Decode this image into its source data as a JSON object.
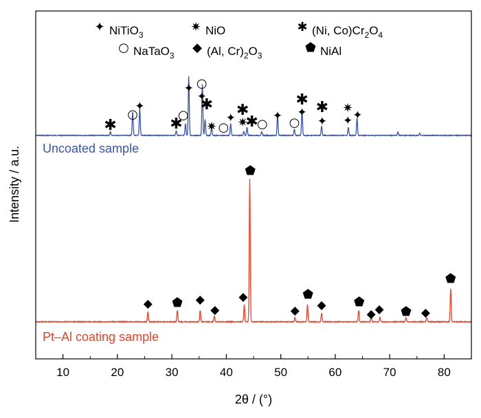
{
  "chart_data": {
    "type": "line",
    "xlabel": "2θ / (°)",
    "ylabel": "Intensity / a.u.",
    "xlim": [
      5,
      85
    ],
    "x_ticks": [
      "10",
      "20",
      "30",
      "40",
      "50",
      "60",
      "70",
      "80"
    ],
    "grid": false,
    "legend_position": "top",
    "legend": [
      {
        "symbol": "✦",
        "symbol_name": "four-point-star",
        "parts": [
          [
            "NiTiO",
            ""
          ],
          [
            "3",
            "sub"
          ]
        ]
      },
      {
        "symbol": "✷",
        "symbol_name": "eight-point-star",
        "parts": [
          [
            "NiO",
            ""
          ]
        ]
      },
      {
        "symbol": "✱",
        "symbol_name": "asterisk",
        "parts": [
          [
            "(Ni, Co)Cr",
            ""
          ],
          [
            "2",
            "sub"
          ],
          [
            "O",
            ""
          ],
          [
            "4",
            "sub"
          ]
        ]
      },
      {
        "symbol": "○",
        "symbol_name": "open-circle",
        "parts": [
          [
            "NaTaO",
            ""
          ],
          [
            "3",
            "sub"
          ]
        ]
      },
      {
        "symbol": "◆",
        "symbol_name": "diamond",
        "parts": [
          [
            "(Al, Cr)",
            ""
          ],
          [
            "2",
            "sub"
          ],
          [
            "O",
            ""
          ],
          [
            "3",
            "sub"
          ]
        ]
      },
      {
        "symbol": "⬟",
        "symbol_name": "pentagon",
        "parts": [
          [
            "NiAl",
            ""
          ]
        ]
      }
    ],
    "series": [
      {
        "name": "Uncoated sample",
        "color": "#3a55a8",
        "peaks": [
          [
            18.7,
            0.05
          ],
          [
            22.8,
            0.3
          ],
          [
            24.1,
            0.35
          ],
          [
            30.8,
            0.06
          ],
          [
            32.5,
            0.15
          ],
          [
            33.1,
            0.75
          ],
          [
            35.6,
            0.65
          ],
          [
            36.1,
            0.2
          ],
          [
            37.3,
            0.1
          ],
          [
            40.8,
            0.15
          ],
          [
            43.2,
            0.05
          ],
          [
            43.8,
            0.1
          ],
          [
            46.5,
            0.05
          ],
          [
            49.4,
            0.25
          ],
          [
            52.5,
            0.08
          ],
          [
            53.9,
            0.32
          ],
          [
            57.5,
            0.12
          ],
          [
            62.4,
            0.1
          ],
          [
            64.0,
            0.22
          ],
          [
            71.5,
            0.04
          ],
          [
            75.5,
            0.03
          ]
        ],
        "markers": [
          [
            "✱",
            18.7
          ],
          [
            "○",
            22.8
          ],
          [
            "✦",
            24.1
          ],
          [
            "✱",
            30.8
          ],
          [
            "○",
            32.1
          ],
          [
            "✦",
            33.1
          ],
          [
            "○",
            35.5
          ],
          [
            "✦",
            35.5
          ],
          [
            "✱",
            36.4
          ],
          [
            "✷",
            37.3
          ],
          [
            "○",
            39.5
          ],
          [
            "✦",
            40.8
          ],
          [
            "✱",
            43.0
          ],
          [
            "✷",
            43.0
          ],
          [
            "✱",
            44.7
          ],
          [
            "○",
            46.6
          ],
          [
            "✦",
            49.4
          ],
          [
            "○",
            52.5
          ],
          [
            "✱",
            53.9
          ],
          [
            "✦",
            53.9
          ],
          [
            "✱",
            57.6
          ],
          [
            "✦",
            57.6
          ],
          [
            "✷",
            62.3
          ],
          [
            "✦",
            62.3
          ],
          [
            "✦",
            64.1
          ]
        ]
      },
      {
        "name": "Pt–Al coating sample",
        "color": "#e8442a",
        "peaks": [
          [
            25.6,
            0.07
          ],
          [
            31.0,
            0.08
          ],
          [
            35.2,
            0.08
          ],
          [
            37.8,
            0.04
          ],
          [
            43.3,
            0.12
          ],
          [
            44.3,
            1.0
          ],
          [
            52.6,
            0.03
          ],
          [
            54.9,
            0.12
          ],
          [
            57.5,
            0.06
          ],
          [
            64.3,
            0.08
          ],
          [
            66.6,
            0.03
          ],
          [
            68.2,
            0.03
          ],
          [
            73.0,
            0.03
          ],
          [
            76.8,
            0.03
          ],
          [
            81.2,
            0.23
          ]
        ],
        "markers": [
          [
            "◆",
            25.6
          ],
          [
            "⬟",
            31.0
          ],
          [
            "◆",
            35.2
          ],
          [
            "◆",
            37.9
          ],
          [
            "◆",
            43.1
          ],
          [
            "⬟",
            44.4
          ],
          [
            "◆",
            52.6
          ],
          [
            "⬟",
            55.0
          ],
          [
            "◆",
            57.5
          ],
          [
            "⬟",
            64.4
          ],
          [
            "◆",
            66.6
          ],
          [
            "◆",
            68.1
          ],
          [
            "⬟",
            73.0
          ],
          [
            "◆",
            76.6
          ],
          [
            "⬟",
            81.2
          ]
        ]
      }
    ]
  }
}
